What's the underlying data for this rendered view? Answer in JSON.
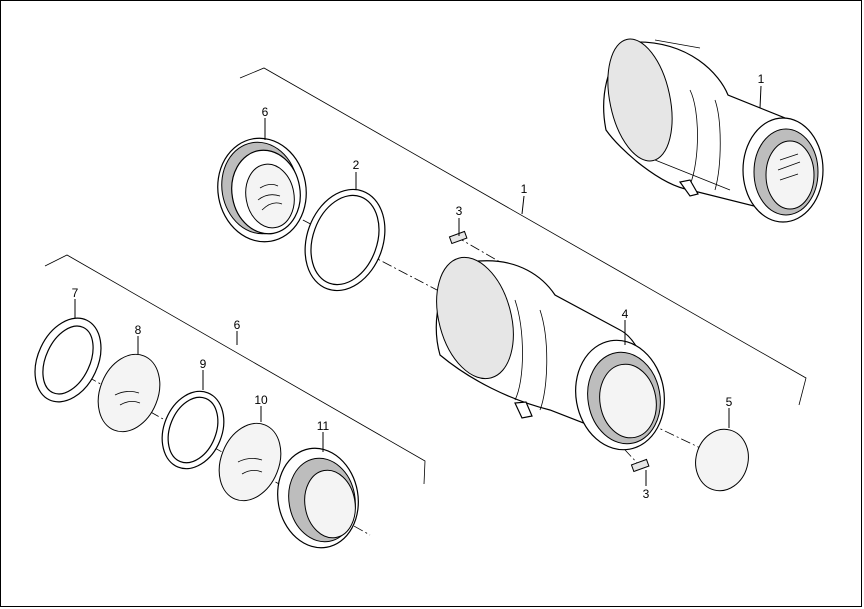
{
  "diagram": {
    "callouts": {
      "c1_top": "1",
      "c1_main": "1",
      "c2": "2",
      "c3_upper": "3",
      "c3_lower": "3",
      "c4": "4",
      "c5": "5",
      "c6_upper": "6",
      "c6_lower": "6",
      "c7": "7",
      "c8": "8",
      "c9": "9",
      "c10": "10",
      "c11": "11"
    }
  }
}
